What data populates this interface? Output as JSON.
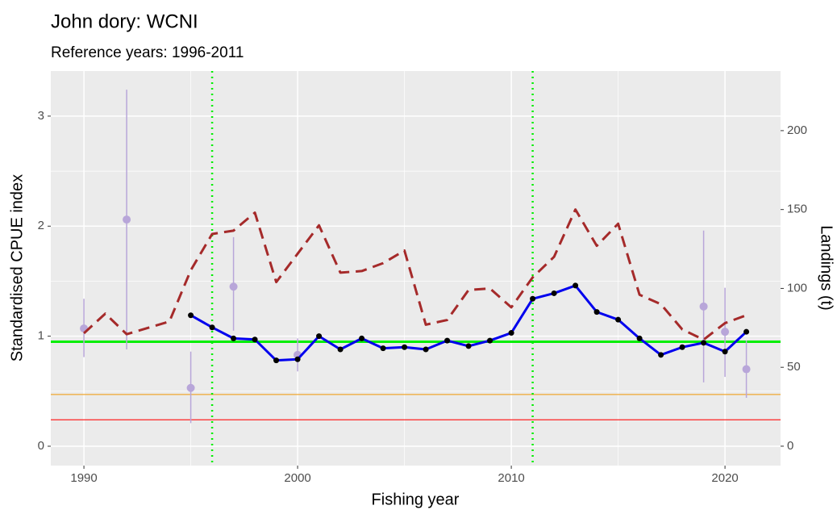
{
  "chart_data": {
    "type": "line",
    "title": "John dory: WCNI",
    "subtitle": "Reference years: 1996-2011",
    "x_label": "Fishing year",
    "y_label": "Standardised CPUE index",
    "y2_label": "Landings (t)",
    "xlim": [
      1988.45,
      2022.6
    ],
    "xticks": [
      1990,
      2000,
      2010,
      2020
    ],
    "ylim": [
      -0.176,
      3.41
    ],
    "yticks": [
      0,
      1,
      2,
      3
    ],
    "y2lim": [
      -12.3,
      237.8
    ],
    "y2ticks": [
      0,
      50,
      100,
      150,
      200
    ],
    "grid": true,
    "series": [
      {
        "color": "#0000ee",
        "style": "solid",
        "markers": true,
        "x": [
          1995,
          1996,
          1997,
          1998,
          1999,
          2000,
          2001,
          2002,
          2003,
          2004,
          2005,
          2006,
          2007,
          2008,
          2009,
          2010,
          2011,
          2012,
          2013,
          2014,
          2015,
          2016,
          2017,
          2018,
          2019,
          2020,
          2021
        ],
        "values": [
          1.19,
          1.08,
          0.98,
          0.97,
          0.78,
          0.79,
          1.0,
          0.88,
          0.98,
          0.89,
          0.9,
          0.88,
          0.96,
          0.91,
          0.96,
          1.03,
          1.34,
          1.39,
          1.46,
          1.22,
          1.15,
          0.98,
          0.83,
          0.9,
          0.94,
          0.86,
          1.04
        ]
      },
      {
        "color": "#a52a2a",
        "style": "dashed",
        "axis": "y2",
        "x": [
          1990,
          1991,
          1992,
          1993,
          1994,
          1995,
          1996,
          1997,
          1998,
          1999,
          2000,
          2001,
          2002,
          2003,
          2004,
          2005,
          2006,
          2007,
          2008,
          2009,
          2010,
          2011,
          2012,
          2013,
          2014,
          2015,
          2016,
          2017,
          2018,
          2019,
          2020,
          2021
        ],
        "values": [
          71.6,
          84,
          71,
          75,
          79,
          111.5,
          134.5,
          136.6,
          148,
          104,
          122,
          140,
          110,
          111,
          116,
          124,
          77,
          80,
          99,
          100,
          88,
          107,
          120,
          150,
          127,
          141,
          96,
          90,
          74,
          67.5,
          78,
          83
        ]
      },
      {
        "color": "#b8a6d9",
        "style": "points",
        "x": [
          1990,
          1992,
          1995,
          1997,
          2000,
          2019,
          2020,
          2021
        ],
        "values": [
          1.07,
          2.06,
          0.53,
          1.45,
          0.83,
          1.27,
          1.04,
          0.7
        ],
        "lower": [
          0.81,
          0.88,
          0.21,
          1.05,
          0.68,
          0.58,
          0.63,
          0.44
        ],
        "upper": [
          1.34,
          3.24,
          0.86,
          1.9,
          0.98,
          1.96,
          1.44,
          0.96
        ]
      }
    ],
    "hlines": [
      {
        "value": 0.95,
        "color": "#00ee00"
      },
      {
        "value": 0.47,
        "color": "#f0a830"
      },
      {
        "value": 0.24,
        "color": "#ff2020"
      }
    ],
    "vlines": [
      {
        "value": 1996,
        "color": "#00ee00"
      },
      {
        "value": 2011,
        "color": "#00ee00"
      }
    ]
  }
}
